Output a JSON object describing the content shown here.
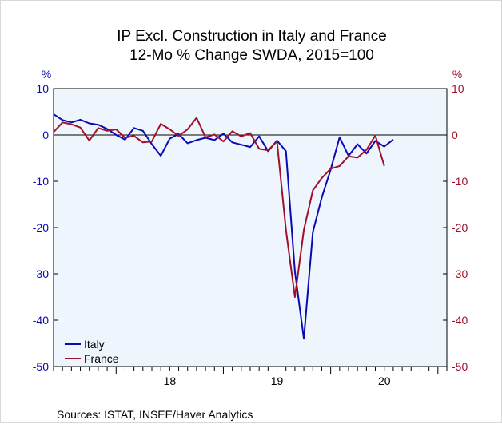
{
  "chart_data": {
    "type": "line",
    "title": "IP Excl. Construction in Italy and France",
    "subtitle": "12-Mo % Change   SWDA, 2015=100",
    "ylabel_left": "%",
    "ylabel_right": "%",
    "ylim": [
      -50,
      10
    ],
    "yticks": [
      10,
      0,
      -10,
      -20,
      -30,
      -40,
      -50
    ],
    "xlim": [
      "2017-06",
      "2021-02"
    ],
    "x_tick_labels": [
      "18",
      "19",
      "20"
    ],
    "zero_line": true,
    "legend_position": "bottom-left",
    "x": [
      "2017-06",
      "2017-07",
      "2017-08",
      "2017-09",
      "2017-10",
      "2017-11",
      "2017-12",
      "2018-01",
      "2018-02",
      "2018-03",
      "2018-04",
      "2018-05",
      "2018-06",
      "2018-07",
      "2018-08",
      "2018-09",
      "2018-10",
      "2018-11",
      "2018-12",
      "2019-01",
      "2019-02",
      "2019-03",
      "2019-04",
      "2019-05",
      "2019-06",
      "2019-07",
      "2019-08",
      "2019-09",
      "2019-10",
      "2019-11",
      "2019-12",
      "2020-01",
      "2020-02",
      "2020-03",
      "2020-04",
      "2020-05",
      "2020-06",
      "2020-07",
      "2020-08",
      "2020-09",
      "2020-10",
      "2020-11",
      "2020-12",
      "2021-01"
    ],
    "series": [
      {
        "name": "Italy",
        "color": "#0a0ab4",
        "values": [
          4.5,
          3.2,
          2.7,
          3.3,
          2.5,
          2.2,
          1.3,
          0.0,
          -1.0,
          1.5,
          0.9,
          -2.0,
          -4.5,
          -0.8,
          0.2,
          -1.8,
          -1.1,
          -0.6,
          -1.1,
          0.3,
          -1.6,
          -2.1,
          -2.6,
          -0.3,
          -3.5,
          -1.2,
          -3.5,
          -29.5,
          -44.0,
          -21.0,
          -13.5,
          -7.5,
          -0.5,
          -4.5,
          -2.0,
          -4.0,
          -1.3,
          -2.5,
          -1.0,
          null,
          null,
          null,
          null,
          null
        ]
      },
      {
        "name": "France",
        "color": "#a0102a",
        "values": [
          0.6,
          2.7,
          2.3,
          1.6,
          -1.2,
          1.5,
          0.9,
          1.2,
          -0.6,
          -0.2,
          -1.6,
          -1.4,
          2.4,
          1.2,
          -0.2,
          1.2,
          3.7,
          -0.5,
          0.1,
          -1.4,
          0.8,
          -0.3,
          0.4,
          -3.0,
          -3.3,
          -1.4,
          -20.5,
          -35.0,
          -20.5,
          -12.0,
          -9.3,
          -7.3,
          -6.7,
          -4.6,
          -4.9,
          -3.2,
          -0.1,
          -6.7,
          null,
          null,
          null,
          null,
          null,
          null
        ]
      }
    ],
    "source": "Sources:   ISTAT, INSEE/Haver Analytics"
  }
}
